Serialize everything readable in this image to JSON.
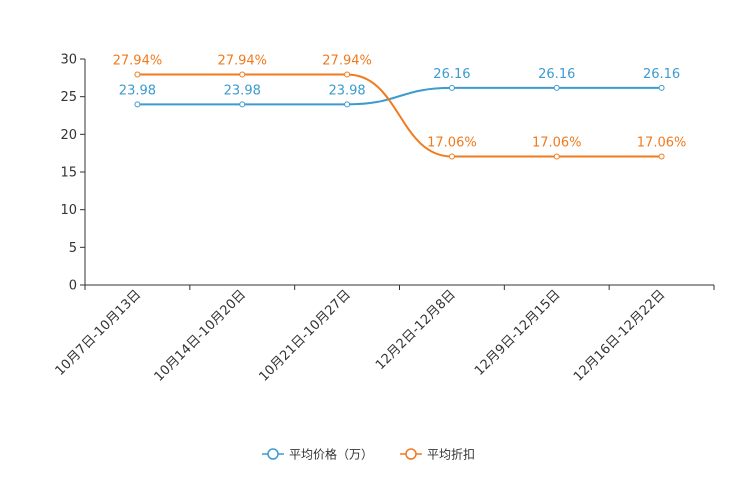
{
  "chart_data": {
    "type": "line",
    "title": "",
    "xlabel": "",
    "ylabel": "",
    "ylim": [
      0,
      30
    ],
    "yticks": [
      0,
      5,
      10,
      15,
      20,
      25,
      30
    ],
    "grid": false,
    "legend_position": "bottom",
    "categories": [
      "10月7日-10月13日",
      "10月14日-10月20日",
      "10月21日-10月27日",
      "12月2日-12月8日",
      "12月9日-12月15日",
      "12月16日-12月22日"
    ],
    "series": [
      {
        "name": "平均价格（万）",
        "color": "#3c9bd0",
        "values": [
          23.98,
          23.98,
          23.98,
          26.16,
          26.16,
          26.16
        ],
        "labels": [
          "23.98",
          "23.98",
          "23.98",
          "26.16",
          "26.16",
          "26.16"
        ]
      },
      {
        "name": "平均折扣",
        "color": "#f07a1e",
        "values": [
          27.94,
          27.94,
          27.94,
          17.06,
          17.06,
          17.06
        ],
        "labels": [
          "27.94%",
          "27.94%",
          "27.94%",
          "17.06%",
          "17.06%",
          "17.06%"
        ]
      }
    ]
  }
}
